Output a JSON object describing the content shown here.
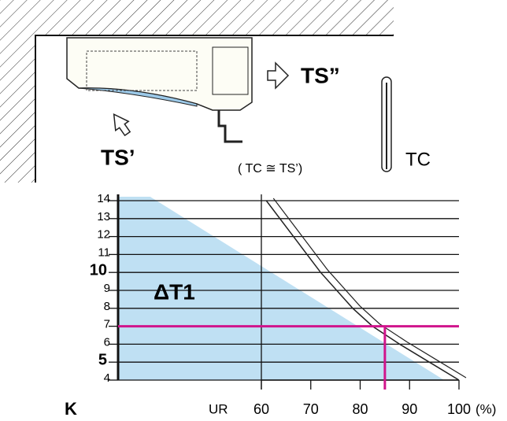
{
  "illustration": {
    "label_outlet": "TS”",
    "label_inlet": "TS’",
    "label_relation": "( TC  ≅ TS’)",
    "label_thermometer": "TC"
  },
  "chart_data": {
    "type": "line",
    "annotation": "ΔT1",
    "ylabel": "K",
    "xlabel": "UR",
    "xunit": "(%)",
    "xlim": [
      31,
      100
    ],
    "ylim": [
      4,
      14
    ],
    "xticks": [
      60,
      70,
      80,
      90,
      100
    ],
    "yticks": [
      4,
      5,
      6,
      7,
      8,
      9,
      10,
      11,
      12,
      13,
      14
    ],
    "series": [
      {
        "color": "#222222",
        "x": [
          61,
          66.5,
          72,
          78.5,
          82.5,
          88,
          94,
          100
        ],
        "values": [
          14,
          12,
          10,
          8,
          7,
          6,
          5,
          4
        ]
      }
    ],
    "area": {
      "color": "#bfe0f3",
      "x": [
        37.5,
        97
      ],
      "values": [
        14,
        4
      ]
    },
    "reference": {
      "color": "#d0148c",
      "x": 85,
      "y": 7
    },
    "grid": true
  }
}
